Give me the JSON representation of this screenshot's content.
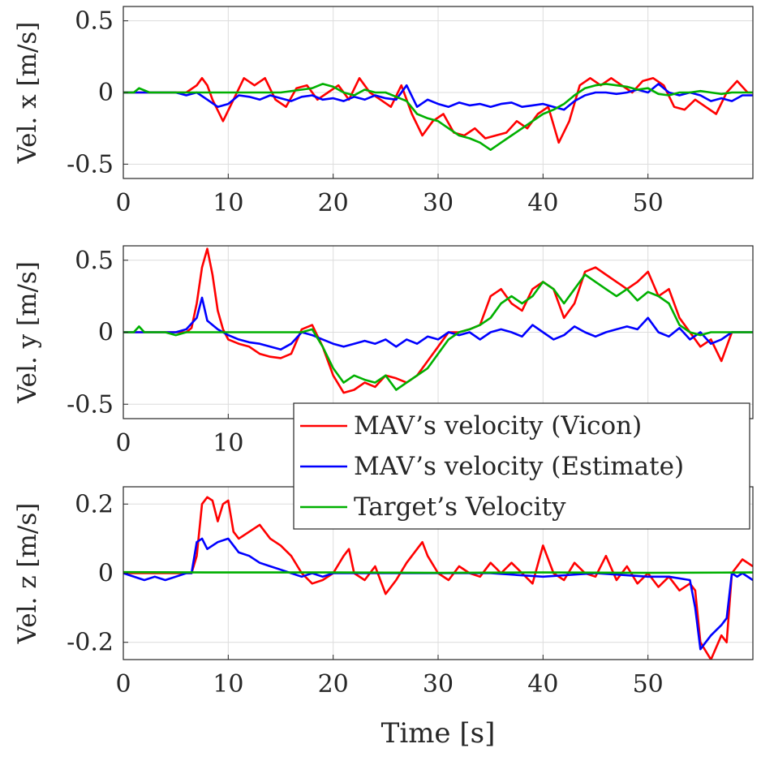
{
  "chart_data": [
    {
      "type": "line",
      "ylabel": "Vel. x [m/s]",
      "xlabel": "",
      "xlim": [
        0,
        60
      ],
      "ylim": [
        -0.6,
        0.6
      ],
      "xticks": [
        0,
        10,
        20,
        30,
        40,
        50
      ],
      "xtick_labels": [
        "0",
        "10",
        "20",
        "30",
        "40",
        "50"
      ],
      "yticks": [
        0.5,
        0,
        -0.5
      ],
      "ytick_labels": [
        "0.5",
        "0",
        "-0.5"
      ],
      "grid": true,
      "series": [
        {
          "name": "MAV's velocity (Vicon)",
          "color": "#ff0000",
          "x": [
            0,
            6,
            7,
            7.5,
            8,
            8.5,
            9.5,
            10.5,
            11.5,
            12.5,
            13.5,
            14.5,
            15.5,
            16.5,
            17.5,
            18.5,
            19.5,
            20.5,
            21.5,
            22.5,
            23.5,
            24.5,
            25.5,
            26.5,
            27.5,
            28.5,
            29.5,
            30.5,
            31.5,
            32.5,
            33.5,
            34.5,
            35.5,
            36.5,
            37.5,
            38.5,
            39.5,
            40.5,
            41.5,
            42.5,
            43.5,
            44.5,
            45.5,
            46.5,
            47.5,
            48.5,
            49.5,
            50.5,
            51.5,
            52.5,
            53.5,
            54.5,
            55.5,
            56.5,
            57.5,
            58.5,
            59.5,
            60
          ],
          "values": [
            0,
            0,
            0.05,
            0.1,
            0.05,
            -0.05,
            -0.2,
            -0.05,
            0.1,
            0.05,
            0.1,
            -0.05,
            -0.1,
            0.03,
            0.05,
            -0.05,
            0,
            0.05,
            -0.05,
            0.1,
            0,
            -0.05,
            -0.1,
            0.05,
            -0.15,
            -0.3,
            -0.2,
            -0.15,
            -0.28,
            -0.3,
            -0.25,
            -0.32,
            -0.3,
            -0.28,
            -0.2,
            -0.25,
            -0.15,
            -0.1,
            -0.35,
            -0.2,
            0.05,
            0.1,
            0.05,
            0.1,
            0.05,
            0,
            0.08,
            0.1,
            0.05,
            -0.1,
            -0.12,
            -0.05,
            -0.1,
            -0.15,
            0,
            0.08,
            0,
            0
          ]
        },
        {
          "name": "MAV's velocity (Estimate)",
          "color": "#0000ff",
          "x": [
            0,
            5,
            6,
            7,
            8,
            9,
            10,
            11,
            12,
            13,
            14,
            15,
            16,
            17,
            18,
            19,
            20,
            21,
            22,
            23,
            24,
            25,
            26,
            27,
            28,
            29,
            30,
            31,
            32,
            33,
            34,
            35,
            36,
            37,
            38,
            39,
            40,
            41,
            42,
            43,
            44,
            45,
            46,
            47,
            48,
            49,
            50,
            51,
            52,
            53,
            54,
            55,
            56,
            57,
            58,
            59,
            60
          ],
          "values": [
            0,
            0,
            -0.02,
            0,
            -0.05,
            -0.1,
            -0.08,
            -0.02,
            -0.03,
            -0.05,
            -0.02,
            -0.04,
            -0.06,
            -0.03,
            -0.02,
            -0.05,
            -0.04,
            -0.06,
            -0.03,
            -0.05,
            -0.02,
            -0.04,
            -0.05,
            0.05,
            -0.1,
            -0.05,
            -0.08,
            -0.1,
            -0.07,
            -0.09,
            -0.08,
            -0.1,
            -0.08,
            -0.07,
            -0.1,
            -0.09,
            -0.08,
            -0.1,
            -0.12,
            -0.06,
            -0.02,
            0,
            0,
            -0.01,
            0,
            0.02,
            0,
            0.06,
            0,
            -0.02,
            0,
            -0.02,
            -0.06,
            -0.04,
            -0.06,
            -0.02,
            -0.02
          ]
        },
        {
          "name": "Target's Velocity",
          "color": "#00b000",
          "x": [
            0,
            1,
            1.5,
            2.5,
            3,
            10,
            15,
            17,
            18,
            19,
            20,
            21,
            22,
            23,
            24,
            25,
            26,
            27,
            28,
            29,
            30,
            31,
            32,
            33,
            34,
            35,
            36,
            37,
            38,
            39,
            40,
            41,
            42,
            43,
            44,
            45,
            46,
            47,
            48,
            49,
            50,
            51,
            52,
            53,
            54,
            55,
            56,
            57,
            58,
            59,
            60
          ],
          "values": [
            0,
            0,
            0.03,
            0,
            0,
            0,
            0,
            0.02,
            0.03,
            0.06,
            0.04,
            0,
            -0.02,
            0.02,
            0,
            0,
            -0.03,
            -0.06,
            -0.15,
            -0.18,
            -0.2,
            -0.25,
            -0.3,
            -0.32,
            -0.35,
            -0.4,
            -0.35,
            -0.3,
            -0.25,
            -0.2,
            -0.15,
            -0.12,
            -0.08,
            -0.02,
            0.03,
            0.05,
            0.06,
            0.05,
            0.04,
            0.02,
            0.03,
            -0.01,
            -0.02,
            0,
            0,
            0.01,
            0,
            -0.01,
            0,
            0,
            0
          ]
        }
      ]
    },
    {
      "type": "line",
      "ylabel": "Vel. y [m/s]",
      "xlabel": "",
      "xlim": [
        0,
        60
      ],
      "ylim": [
        -0.6,
        0.6
      ],
      "xticks": [
        0,
        10
      ],
      "xtick_labels": [
        "0",
        "10"
      ],
      "yticks": [
        0.5,
        0,
        -0.5
      ],
      "ytick_labels": [
        "0.5",
        "0",
        "-0.5"
      ],
      "grid": true,
      "series": [
        {
          "name": "MAV's velocity (Vicon)",
          "color": "#ff0000",
          "x": [
            0,
            5,
            6,
            6.5,
            7,
            7.5,
            8,
            8.5,
            9,
            9.5,
            10,
            11,
            12,
            13,
            14,
            15,
            16,
            17,
            18,
            19,
            20,
            21,
            22,
            23,
            24,
            25,
            26,
            27,
            28,
            29,
            30,
            31,
            32,
            33,
            34,
            35,
            36,
            37,
            38,
            39,
            40,
            41,
            42,
            43,
            44,
            45,
            46,
            47,
            48,
            49,
            50,
            51,
            52,
            53,
            54,
            55,
            56,
            57,
            58,
            59,
            60
          ],
          "values": [
            0,
            0,
            0,
            0.03,
            0.2,
            0.45,
            0.58,
            0.4,
            0.15,
            0.02,
            -0.05,
            -0.08,
            -0.1,
            -0.15,
            -0.17,
            -0.18,
            -0.15,
            0.02,
            0.05,
            -0.1,
            -0.3,
            -0.42,
            -0.4,
            -0.35,
            -0.38,
            -0.3,
            -0.32,
            -0.35,
            -0.3,
            -0.2,
            -0.1,
            0,
            0,
            0.02,
            0.05,
            0.25,
            0.3,
            0.2,
            0.15,
            0.3,
            0.35,
            0.3,
            0.1,
            0.2,
            0.42,
            0.45,
            0.4,
            0.35,
            0.3,
            0.35,
            0.42,
            0.25,
            0.3,
            0.1,
            0,
            -0.1,
            -0.05,
            -0.2,
            0,
            0,
            0
          ]
        },
        {
          "name": "MAV's velocity (Estimate)",
          "color": "#0000ff",
          "x": [
            0,
            5,
            6,
            7,
            7.5,
            8,
            9,
            10,
            11,
            12,
            13,
            14,
            15,
            16,
            17,
            18,
            19,
            20,
            21,
            22,
            23,
            24,
            25,
            26,
            27,
            28,
            29,
            30,
            31,
            32,
            33,
            34,
            35,
            36,
            37,
            38,
            39,
            40,
            41,
            42,
            43,
            44,
            45,
            46,
            47,
            48,
            49,
            50,
            51,
            52,
            53,
            54,
            55,
            56,
            57,
            58,
            59,
            60
          ],
          "values": [
            0,
            0,
            0.02,
            0.1,
            0.24,
            0.08,
            0.02,
            -0.02,
            -0.05,
            -0.07,
            -0.08,
            -0.1,
            -0.12,
            -0.08,
            0,
            -0.02,
            -0.05,
            -0.08,
            -0.1,
            -0.08,
            -0.06,
            -0.08,
            -0.05,
            -0.1,
            -0.05,
            -0.08,
            -0.03,
            -0.05,
            0,
            -0.02,
            0,
            -0.05,
            0,
            0.02,
            0,
            -0.03,
            0.05,
            0,
            -0.05,
            -0.02,
            0.04,
            0,
            -0.03,
            0,
            0.02,
            0.04,
            0.02,
            0.1,
            0,
            -0.03,
            0.03,
            -0.05,
            0,
            -0.08,
            -0.05,
            0,
            0,
            0
          ]
        },
        {
          "name": "Target's Velocity",
          "color": "#00b000",
          "x": [
            0,
            1,
            1.5,
            2,
            3,
            4,
            5,
            6,
            8,
            10,
            15,
            17,
            18,
            19,
            20,
            21,
            22,
            23,
            24,
            25,
            26,
            27,
            28,
            29,
            30,
            31,
            32,
            33,
            34,
            35,
            36,
            37,
            38,
            39,
            40,
            41,
            42,
            43,
            44,
            45,
            46,
            47,
            48,
            49,
            50,
            51,
            52,
            53,
            54,
            55,
            56,
            57,
            58,
            59,
            60
          ],
          "values": [
            0,
            0,
            0.04,
            0,
            0,
            0,
            -0.02,
            0,
            0,
            0,
            0,
            0,
            0.02,
            -0.1,
            -0.25,
            -0.35,
            -0.3,
            -0.33,
            -0.35,
            -0.3,
            -0.4,
            -0.35,
            -0.3,
            -0.25,
            -0.15,
            -0.05,
            0,
            0.02,
            0.05,
            0.1,
            0.2,
            0.25,
            0.2,
            0.25,
            0.35,
            0.3,
            0.2,
            0.3,
            0.4,
            0.35,
            0.3,
            0.25,
            0.3,
            0.22,
            0.28,
            0.25,
            0.2,
            0.05,
            0,
            -0.02,
            0,
            0,
            0,
            0,
            0
          ]
        }
      ]
    },
    {
      "type": "line",
      "ylabel": "Vel. z [m/s]",
      "xlabel": "Time [s]",
      "xlim": [
        0,
        60
      ],
      "ylim": [
        -0.25,
        0.25
      ],
      "xticks": [
        0,
        10,
        20,
        30,
        40,
        50
      ],
      "xtick_labels": [
        "0",
        "10",
        "20",
        "30",
        "40",
        "50"
      ],
      "yticks": [
        0.2,
        0,
        -0.2
      ],
      "ytick_labels": [
        "0.2",
        "0",
        "-0.2"
      ],
      "grid": true,
      "series": [
        {
          "name": "MAV's velocity (Vicon)",
          "color": "#ff0000",
          "x": [
            0,
            6,
            6.5,
            7,
            7.5,
            8,
            8.5,
            9,
            9.5,
            10,
            10.5,
            11,
            12,
            13,
            14,
            15,
            16,
            17,
            18,
            19,
            20,
            21,
            21.5,
            22,
            23,
            24,
            25,
            26,
            27,
            28,
            28.5,
            29,
            30,
            31,
            32,
            33,
            34,
            35,
            36,
            37,
            38,
            39,
            40,
            41,
            42,
            43,
            44,
            45,
            46,
            47,
            48,
            49,
            50,
            51,
            52,
            53,
            54,
            54.5,
            55,
            56,
            57,
            57.5,
            58,
            59,
            60
          ],
          "values": [
            0,
            0,
            0,
            0.05,
            0.2,
            0.22,
            0.21,
            0.15,
            0.2,
            0.21,
            0.12,
            0.1,
            0.12,
            0.14,
            0.1,
            0.08,
            0.05,
            0,
            -0.03,
            -0.02,
            0,
            0.05,
            0.07,
            0,
            -0.02,
            0.02,
            -0.06,
            -0.02,
            0.03,
            0.07,
            0.09,
            0.05,
            0,
            -0.02,
            0.02,
            0,
            -0.01,
            0.03,
            0,
            0.03,
            0,
            -0.03,
            0.08,
            0,
            -0.02,
            0.03,
            0,
            -0.01,
            0.05,
            -0.02,
            0.02,
            -0.03,
            0,
            -0.04,
            -0.01,
            -0.05,
            -0.03,
            -0.05,
            -0.2,
            -0.25,
            -0.18,
            -0.2,
            0,
            0.04,
            0.02
          ]
        },
        {
          "name": "MAV's velocity (Estimate)",
          "color": "#0000ff",
          "x": [
            0,
            2,
            3,
            4,
            5,
            6,
            6.5,
            7,
            7.5,
            8,
            9,
            10,
            11,
            12,
            13,
            14,
            15,
            16,
            17,
            18,
            19,
            20,
            25,
            30,
            35,
            40,
            45,
            50,
            52,
            54,
            54.5,
            55,
            56,
            57,
            57.5,
            58,
            58.5,
            59,
            60
          ],
          "values": [
            0,
            -0.02,
            -0.01,
            -0.02,
            -0.01,
            0,
            0,
            0.09,
            0.1,
            0.07,
            0.09,
            0.1,
            0.06,
            0.05,
            0.03,
            0.02,
            0.01,
            0,
            -0.01,
            0,
            -0.01,
            0,
            0,
            0,
            0,
            -0.01,
            0,
            -0.01,
            -0.01,
            -0.02,
            -0.1,
            -0.22,
            -0.18,
            -0.15,
            -0.13,
            0,
            -0.01,
            0,
            -0.02
          ]
        },
        {
          "name": "Target's Velocity",
          "color": "#00b000",
          "x": [
            0,
            10,
            20,
            30,
            40,
            50,
            60
          ],
          "values": [
            0.003,
            0.002,
            0.002,
            0.001,
            0.002,
            0.001,
            0.002
          ]
        }
      ]
    }
  ],
  "legend": {
    "placement": "center-right, overlapping middle and bottom panels",
    "entries": [
      {
        "label": "MAV’s velocity (Vicon)",
        "color": "#ff0000"
      },
      {
        "label": "MAV’s velocity (Estimate)",
        "color": "#0000ff"
      },
      {
        "label": "Target’s Velocity",
        "color": "#00b000"
      }
    ]
  }
}
